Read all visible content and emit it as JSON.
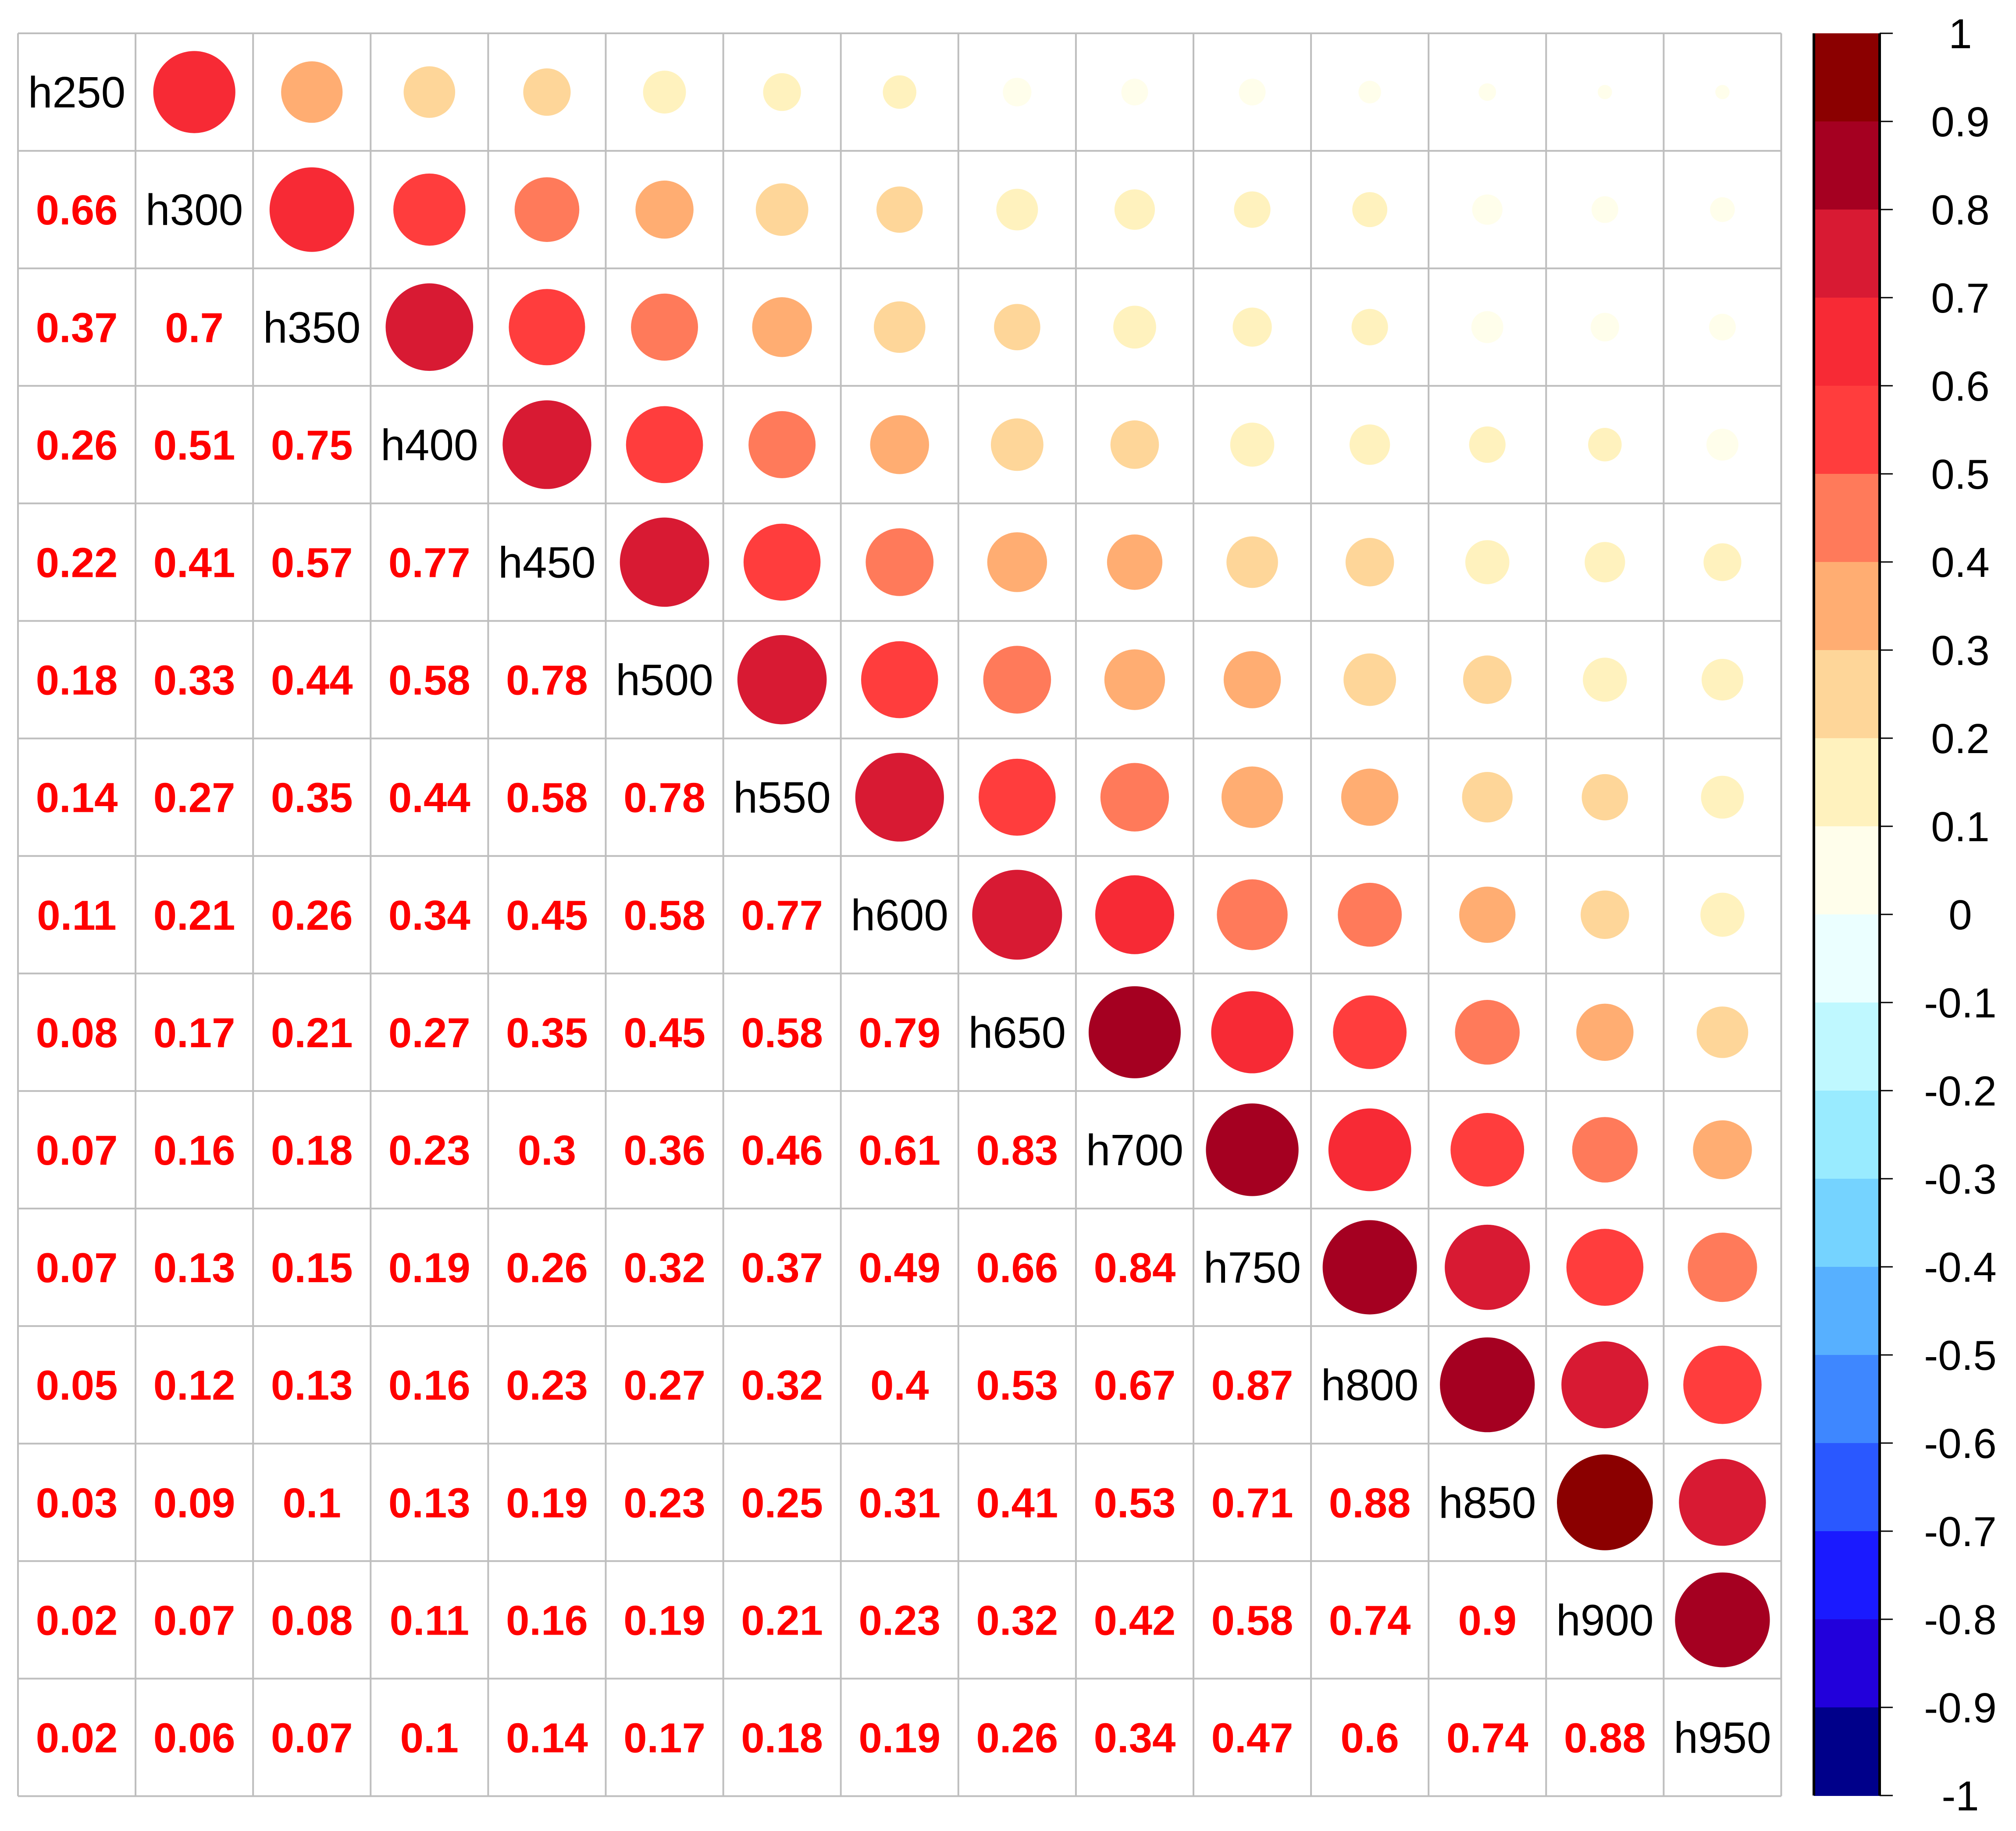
{
  "chart_data": {
    "type": "heatmap",
    "style": "corrplot-mixed: lower triangle numbers, upper triangle circles (size and color by coefficient)",
    "variables": [
      "h250",
      "h300",
      "h350",
      "h400",
      "h450",
      "h500",
      "h550",
      "h600",
      "h650",
      "h700",
      "h750",
      "h800",
      "h850",
      "h900",
      "h950"
    ],
    "lower_triangle": [
      [],
      [
        0.66
      ],
      [
        0.37,
        0.7
      ],
      [
        0.26,
        0.51,
        0.75
      ],
      [
        0.22,
        0.41,
        0.57,
        0.77
      ],
      [
        0.18,
        0.33,
        0.44,
        0.58,
        0.78
      ],
      [
        0.14,
        0.27,
        0.35,
        0.44,
        0.58,
        0.78
      ],
      [
        0.11,
        0.21,
        0.26,
        0.34,
        0.45,
        0.58,
        0.77
      ],
      [
        0.08,
        0.17,
        0.21,
        0.27,
        0.35,
        0.45,
        0.58,
        0.79
      ],
      [
        0.07,
        0.16,
        0.18,
        0.23,
        0.3,
        0.36,
        0.46,
        0.61,
        0.83
      ],
      [
        0.07,
        0.13,
        0.15,
        0.19,
        0.26,
        0.32,
        0.37,
        0.49,
        0.66,
        0.84
      ],
      [
        0.05,
        0.12,
        0.13,
        0.16,
        0.23,
        0.27,
        0.32,
        0.4,
        0.53,
        0.67,
        0.87
      ],
      [
        0.03,
        0.09,
        0.1,
        0.13,
        0.19,
        0.23,
        0.25,
        0.31,
        0.41,
        0.53,
        0.71,
        0.88
      ],
      [
        0.02,
        0.07,
        0.08,
        0.11,
        0.16,
        0.19,
        0.21,
        0.23,
        0.32,
        0.42,
        0.58,
        0.74,
        0.9
      ],
      [
        0.02,
        0.06,
        0.07,
        0.1,
        0.14,
        0.17,
        0.18,
        0.19,
        0.26,
        0.34,
        0.47,
        0.6,
        0.74,
        0.88
      ]
    ],
    "number_color": "#FF0000",
    "grid": true,
    "grid_color": "#BEBEBE",
    "colorbar": {
      "position": "right",
      "range": [
        -1,
        1
      ],
      "ticks": [
        "1",
        "0.9",
        "0.8",
        "0.7",
        "0.6",
        "0.5",
        "0.4",
        "0.3",
        "0.2",
        "0.1",
        "0",
        "-0.1",
        "-0.2",
        "-0.3",
        "-0.4",
        "-0.5",
        "-0.6",
        "-0.7",
        "-0.8",
        "-0.9",
        "-1"
      ],
      "colors_top_to_bottom": [
        "#8B0000",
        "#A50021",
        "#D81A33",
        "#F72A35",
        "#FF3D3D",
        "#FF7A5A",
        "#FFAD72",
        "#FED699",
        "#FFF2BE",
        "#FFFEEB",
        "#EBFFFF",
        "#BFF8FF",
        "#99EBFF",
        "#75D3FF",
        "#57B0FF",
        "#3E87FF",
        "#2A58FF",
        "#1A1AFF",
        "#2200DB",
        "#00008A"
      ]
    }
  }
}
